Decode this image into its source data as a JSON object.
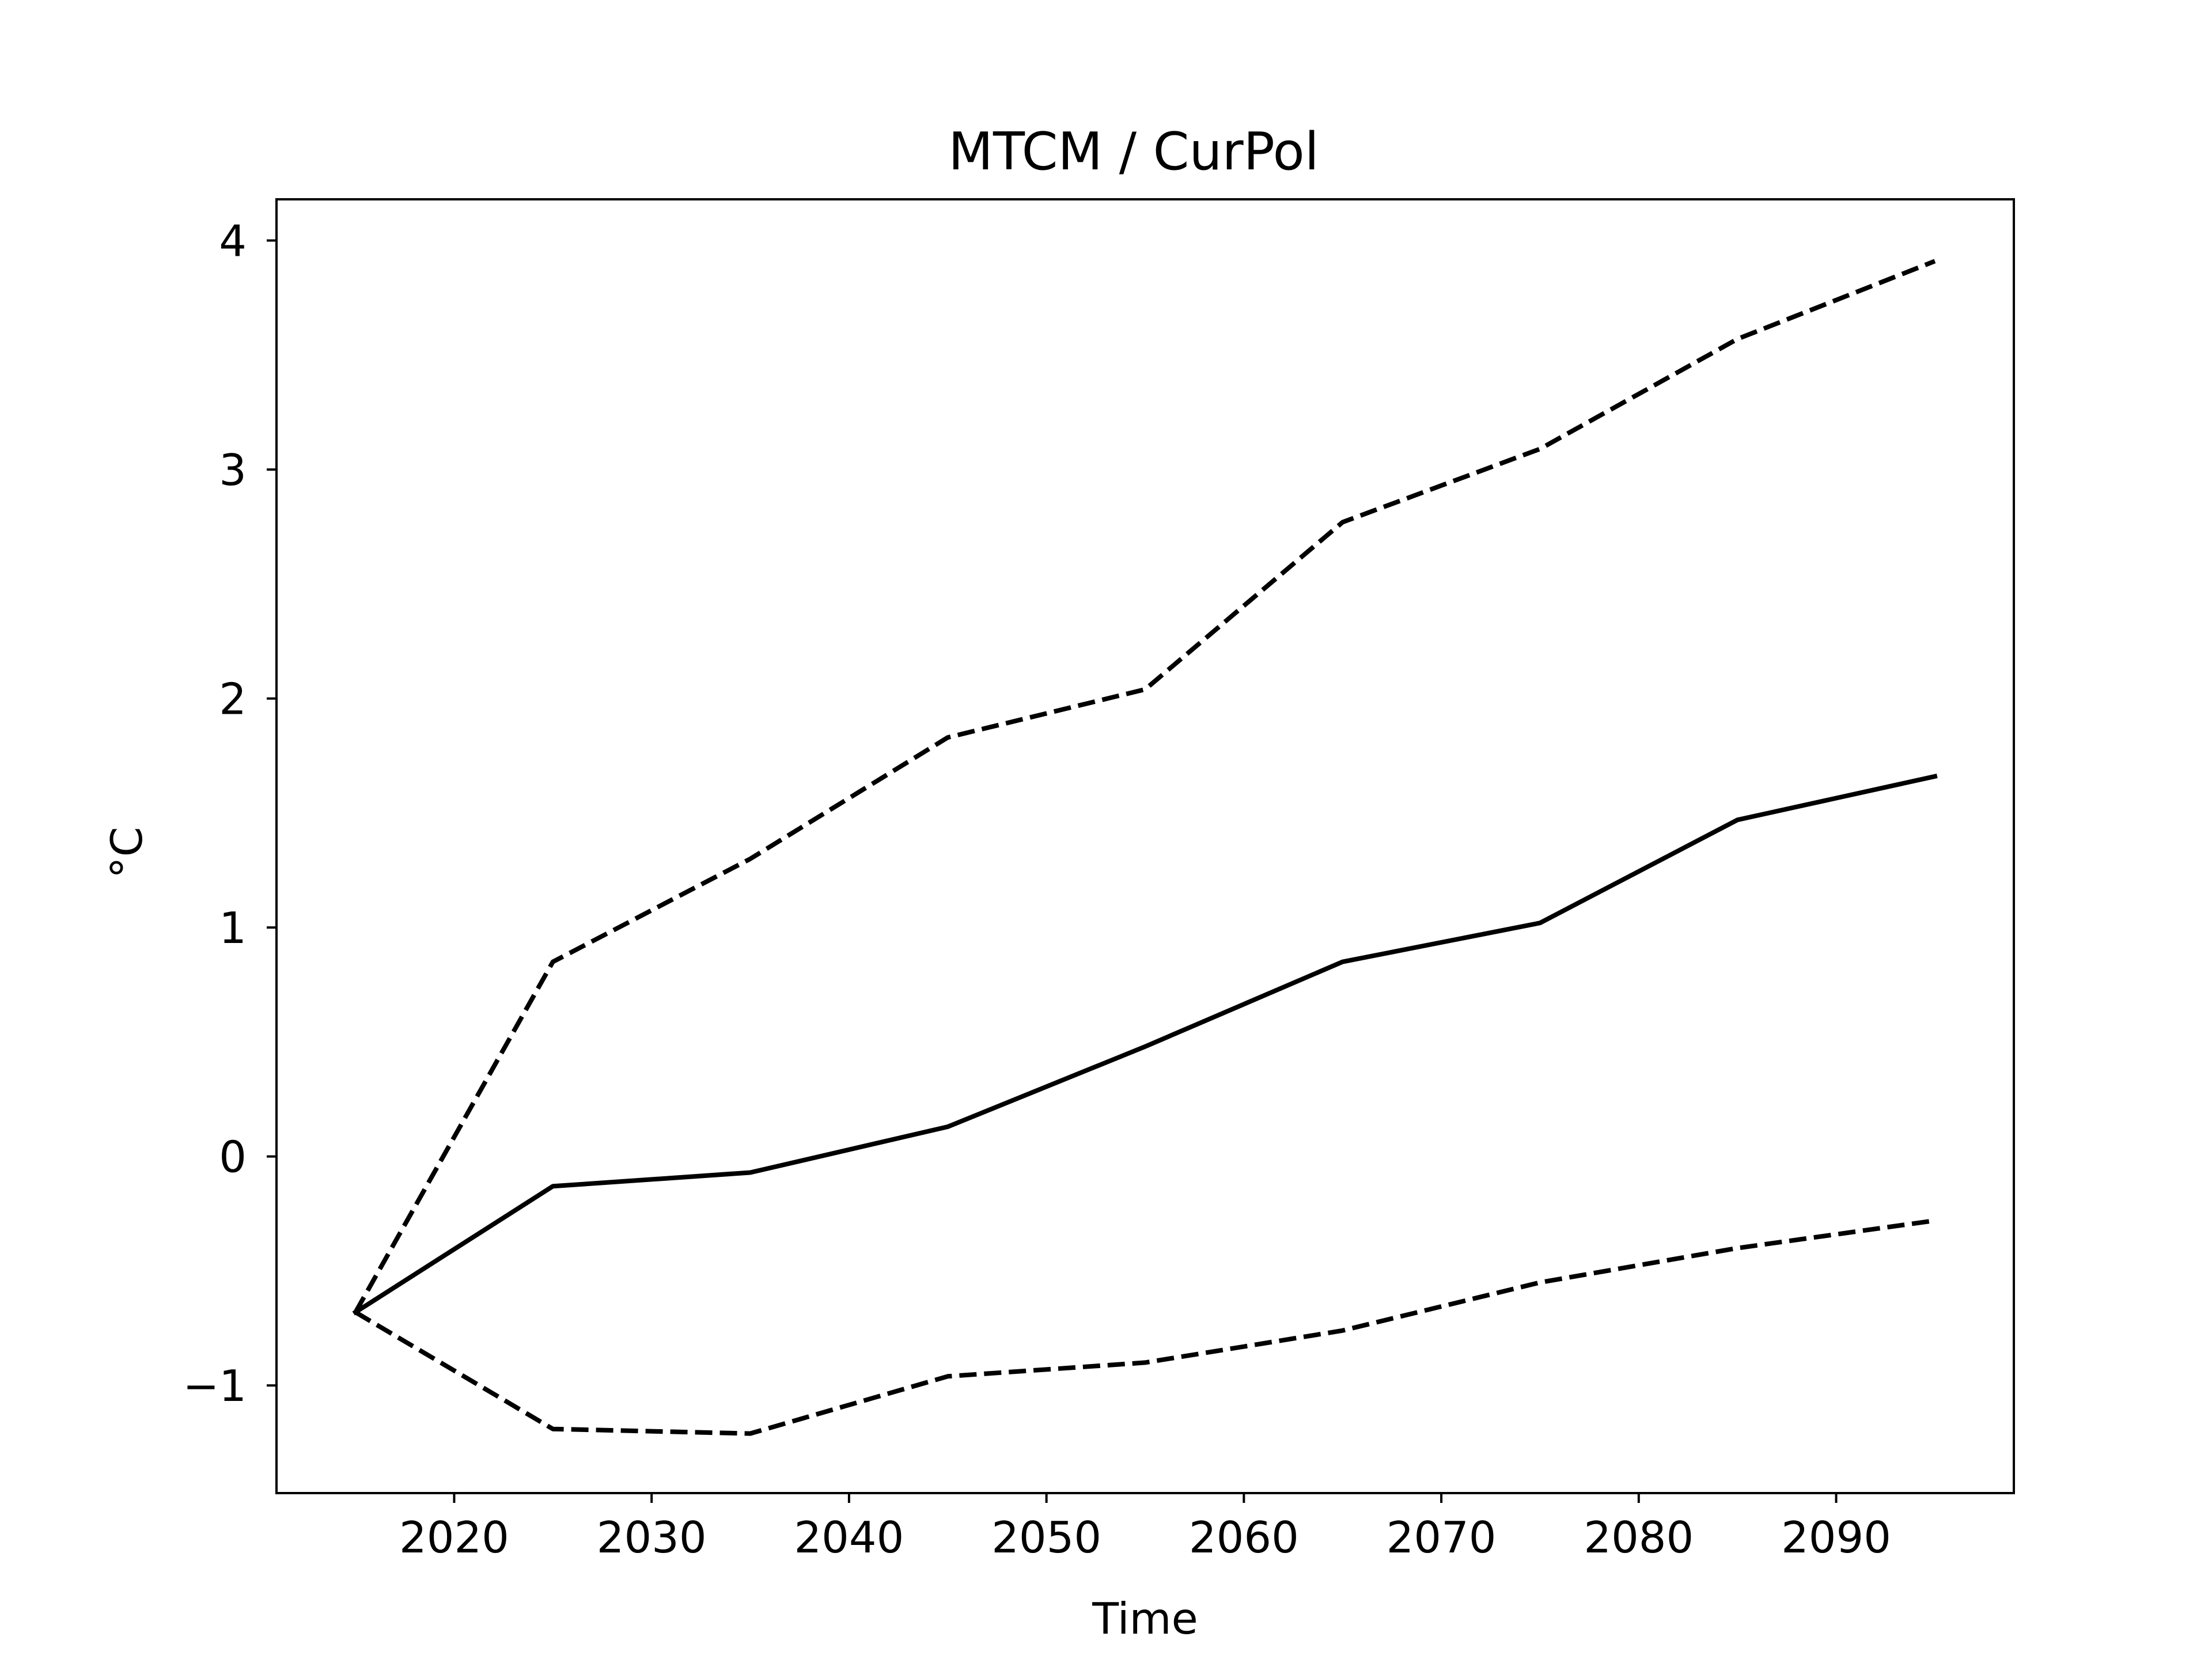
{
  "chart_data": {
    "type": "line",
    "title": "MTCM / CurPol",
    "xlabel": "Time",
    "ylabel": "°C",
    "xlim": [
      2011,
      2099
    ],
    "ylim": [
      -1.47,
      4.18
    ],
    "xticks": [
      2020,
      2030,
      2040,
      2050,
      2060,
      2070,
      2080,
      2090
    ],
    "yticks": [
      -1,
      0,
      1,
      2,
      3,
      4
    ],
    "ytick_labels": [
      "−1",
      "0",
      "1",
      "2",
      "3",
      "4"
    ],
    "grid": false,
    "x": [
      2015,
      2025,
      2035,
      2045,
      2055,
      2065,
      2075,
      2085,
      2095
    ],
    "series": [
      {
        "style": "solid",
        "color": "#000000",
        "values": [
          -0.68,
          -0.13,
          -0.07,
          0.13,
          0.48,
          0.85,
          1.02,
          1.47,
          1.66
        ]
      },
      {
        "style": "dashed",
        "color": "#000000",
        "values": [
          -0.68,
          0.85,
          1.3,
          1.83,
          2.04,
          2.77,
          3.09,
          3.57,
          3.91
        ]
      },
      {
        "style": "dashed",
        "color": "#000000",
        "values": [
          -0.68,
          -1.19,
          -1.21,
          -0.96,
          -0.9,
          -0.76,
          -0.55,
          -0.4,
          -0.28
        ]
      }
    ]
  }
}
